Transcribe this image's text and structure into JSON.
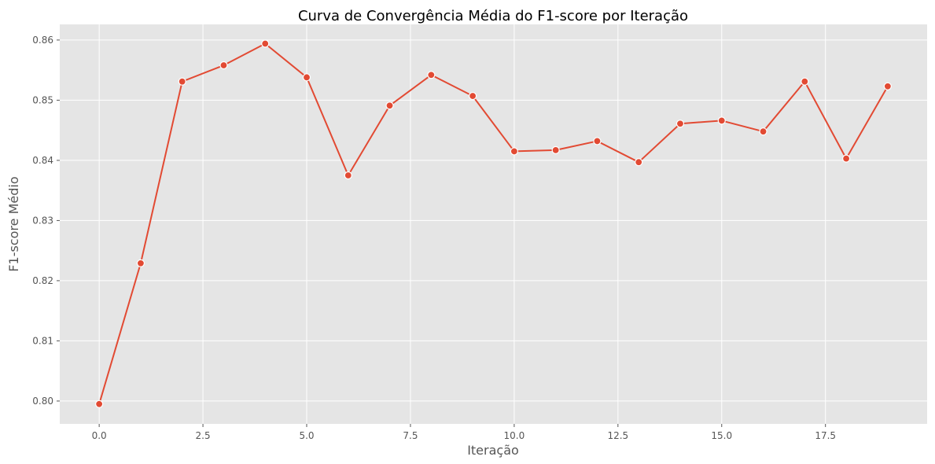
{
  "chart_data": {
    "type": "line",
    "title": "Curva de Convergência Média do F1-score por Iteração",
    "xlabel": "Iteração",
    "ylabel": "F1-score Médio",
    "xlim": [
      -0.95,
      19.95
    ],
    "ylim": [
      0.7962,
      0.8626
    ],
    "x_ticks": [
      0.0,
      2.5,
      5.0,
      7.5,
      10.0,
      12.5,
      15.0,
      17.5
    ],
    "x_tick_labels": [
      "0.0",
      "2.5",
      "5.0",
      "7.5",
      "10.0",
      "12.5",
      "15.0",
      "17.5"
    ],
    "y_ticks": [
      0.8,
      0.81,
      0.82,
      0.83,
      0.84,
      0.85,
      0.86
    ],
    "y_tick_labels": [
      "0.80",
      "0.81",
      "0.82",
      "0.83",
      "0.84",
      "0.85",
      "0.86"
    ],
    "grid": true,
    "background": "#e5e5e5",
    "grid_color": "#ffffff",
    "line_color": "#e24a33",
    "series": [
      {
        "x": [
          0,
          1,
          2,
          3,
          4,
          5,
          6,
          7,
          8,
          9,
          10,
          11,
          12,
          13,
          14,
          15,
          16,
          17,
          18,
          19
        ],
        "values": [
          0.7995,
          0.8229,
          0.8531,
          0.8558,
          0.8594,
          0.8538,
          0.8375,
          0.8491,
          0.8542,
          0.8507,
          0.8415,
          0.8417,
          0.8432,
          0.8397,
          0.8461,
          0.8466,
          0.8448,
          0.8531,
          0.8403,
          0.8523
        ]
      }
    ]
  }
}
